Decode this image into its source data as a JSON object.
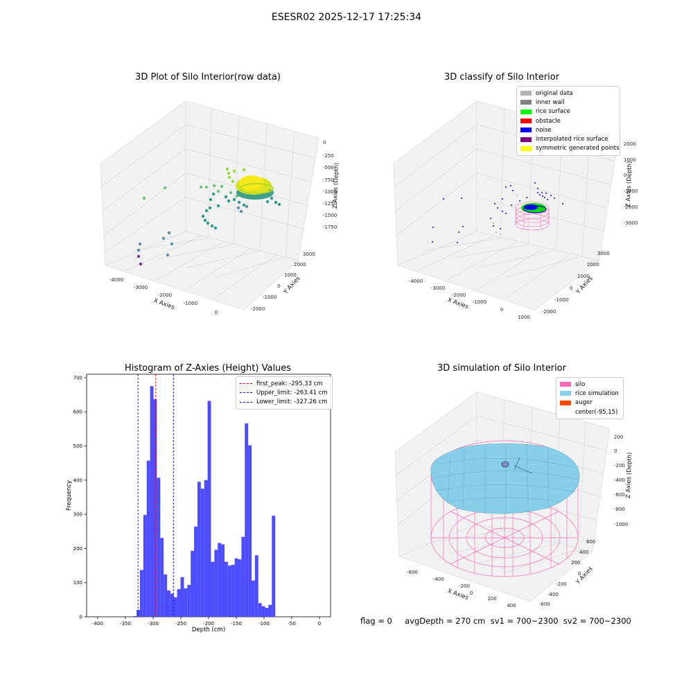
{
  "figure": {
    "suptitle": "ESESR02 2025-12-17 17:25:34"
  },
  "panel_tl": {
    "title": "3D Plot of Silo Interior(row data)",
    "xlabel": "X Axies",
    "ylabel": "Y Axies",
    "zlabel": "Z Axies (Depth)",
    "xticks": [
      "-4000",
      "-3000",
      "-2000",
      "-1000",
      "0"
    ],
    "yticks": [
      "-2000",
      "-1000",
      "0",
      "1000",
      "2000",
      "3000"
    ],
    "zticks": [
      "0",
      "-250",
      "-500",
      "-750",
      "-1000",
      "-1250",
      "-1500",
      "-1750"
    ]
  },
  "panel_tr": {
    "title": "3D classify of Silo Interior",
    "xlabel": "X Axies",
    "ylabel": "Y Axies",
    "zlabel": "Z Axies (Depth)",
    "xticks": [
      "-4000",
      "-3000",
      "-2000",
      "-1000",
      "0",
      "1000"
    ],
    "yticks": [
      "-2000",
      "-1000",
      "0",
      "1000",
      "2000",
      "3000"
    ],
    "zticks": [
      "2000",
      "1000",
      "0",
      "-1000",
      "-2000",
      "-3000"
    ],
    "legend": [
      {
        "label": "original data",
        "color": "#b3b3b3"
      },
      {
        "label": "inner wall",
        "color": "#808080"
      },
      {
        "label": "rice surface",
        "color": "#00ff00"
      },
      {
        "label": "obstacle",
        "color": "#ff0000"
      },
      {
        "label": "noise",
        "color": "#0000ff"
      },
      {
        "label": "interpolated rice surface",
        "color": "#800080"
      },
      {
        "label": "symmetric generated points",
        "color": "#ffff00"
      }
    ]
  },
  "panel_bl": {
    "legend": [
      {
        "label": "first_peak: -295.33 cm",
        "color": "#ff0000"
      },
      {
        "label": "Upper_limit: -263.41 cm",
        "color": "#0000ff"
      },
      {
        "label": "Lower_limit: -327.26 cm",
        "color": "#0000ff"
      }
    ]
  },
  "panel_br": {
    "title": "3D simulation of Silo Interior",
    "xlabel": "X Axies",
    "ylabel": "Y Axies",
    "zlabel": "Z Axies (Depth)",
    "xticks": [
      "-600",
      "-400",
      "-200",
      "0",
      "200",
      "400"
    ],
    "yticks": [
      "-600",
      "-400",
      "-200",
      "0",
      "200",
      "400",
      "600"
    ],
    "zticks": [
      "200",
      "0",
      "-200",
      "-400",
      "-600",
      "-800",
      "-1000"
    ],
    "legend": [
      {
        "label": "silo",
        "color": "#ff69b4"
      },
      {
        "label": "rice simulation",
        "color": "#87ceeb"
      },
      {
        "label": "auger",
        "color": "#ff4500"
      },
      {
        "label": "center(-95,15)",
        "color": ""
      }
    ]
  },
  "footer": {
    "text": "flag = 0     avgDepth = 270 cm  sv1 = 700~2300  sv2 = 700~2300"
  },
  "chart_data": {
    "type": "bar",
    "title": "Histogram of Z-Axies (Height) Values",
    "xlabel": "Depth (cm)",
    "ylabel": "Frequency",
    "xlim": [
      -420,
      20
    ],
    "ylim": [
      0,
      710
    ],
    "xticks": [
      -400,
      -350,
      -300,
      -250,
      -200,
      -150,
      -100,
      -50,
      0
    ],
    "yticks": [
      0,
      100,
      200,
      300,
      400,
      500,
      600,
      700
    ],
    "bin_width": 6.1,
    "bin_start": -336,
    "values": [
      2,
      20,
      137,
      298,
      457,
      675,
      637,
      407,
      231,
      124,
      77,
      68,
      57,
      81,
      116,
      83,
      93,
      193,
      264,
      395,
      375,
      400,
      632,
      161,
      196,
      216,
      212,
      161,
      150,
      152,
      171,
      168,
      234,
      566,
      502,
      106,
      180,
      40,
      31,
      26,
      35,
      296
    ],
    "vlines": [
      {
        "x": -295.33,
        "color": "#ff0000",
        "label": "first_peak: -295.33 cm"
      },
      {
        "x": -263.41,
        "color": "#0000ff",
        "label": "Upper_limit: -263.41 cm"
      },
      {
        "x": -327.26,
        "color": "#0000ff",
        "label": "Lower_limit: -327.26 cm"
      }
    ],
    "bar_color": "#4d4dff"
  }
}
